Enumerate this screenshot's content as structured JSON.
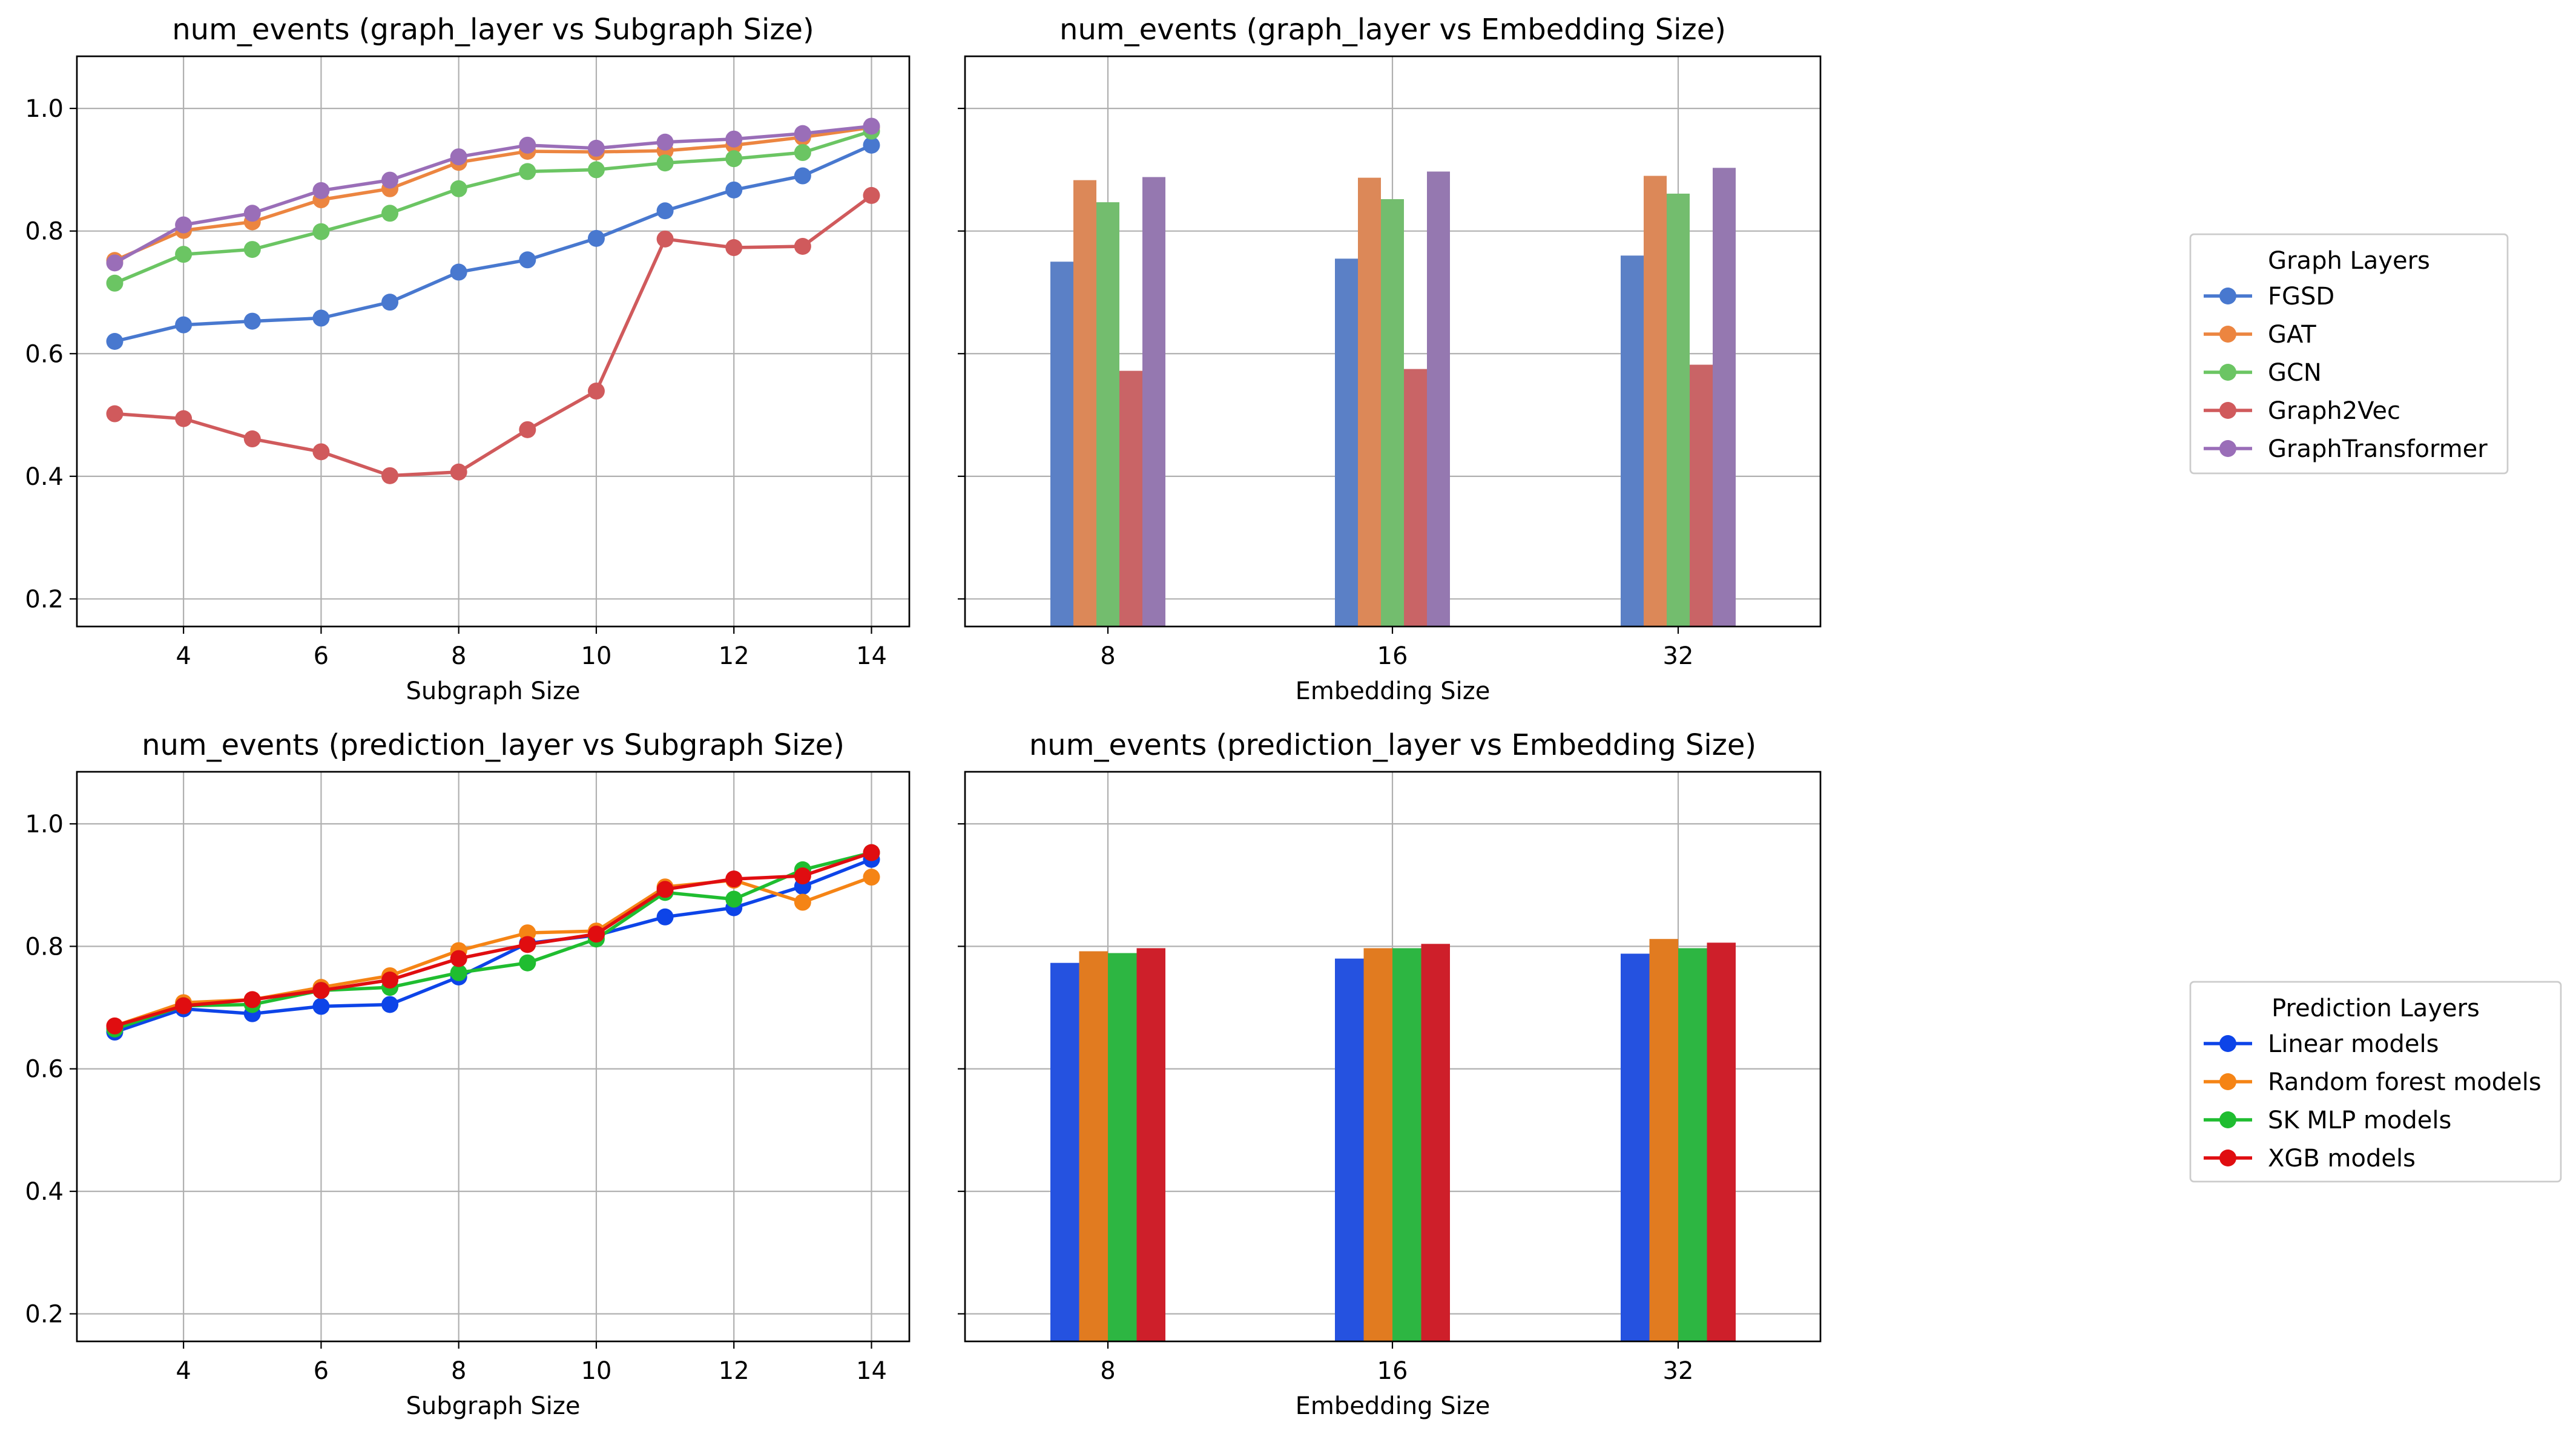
{
  "chart_data": [
    {
      "type": "line",
      "title": "num_events (graph_layer vs Subgraph Size)",
      "xlabel": "Subgraph Size",
      "ylabel": "",
      "x": [
        3,
        4,
        5,
        6,
        7,
        8,
        9,
        10,
        11,
        12,
        13,
        14
      ],
      "xticks": [
        "4",
        "6",
        "8",
        "10",
        "12",
        "14"
      ],
      "xlim": [
        2.45,
        14.55
      ],
      "ylim": [
        0.155,
        1.085
      ],
      "yticks": [
        "0.2",
        "0.4",
        "0.6",
        "0.8",
        "1.0"
      ],
      "grid": true,
      "series": [
        {
          "name": "FGSD",
          "color": "#4878cf",
          "values": [
            0.62,
            0.647,
            0.653,
            0.658,
            0.684,
            0.733,
            0.753,
            0.788,
            0.833,
            0.867,
            0.89,
            0.94
          ]
        },
        {
          "name": "GAT",
          "color": "#ec8540",
          "values": [
            0.752,
            0.801,
            0.815,
            0.851,
            0.869,
            0.912,
            0.93,
            0.929,
            0.931,
            0.94,
            0.953,
            0.969
          ]
        },
        {
          "name": "GCN",
          "color": "#6bc563",
          "values": [
            0.715,
            0.762,
            0.77,
            0.799,
            0.829,
            0.869,
            0.897,
            0.9,
            0.911,
            0.918,
            0.928,
            0.963
          ]
        },
        {
          "name": "Graph2Vec",
          "color": "#d05a5c",
          "values": [
            0.502,
            0.494,
            0.461,
            0.44,
            0.401,
            0.407,
            0.476,
            0.539,
            0.787,
            0.773,
            0.775,
            0.858
          ]
        },
        {
          "name": "GraphTransformer",
          "color": "#9a6eb8",
          "values": [
            0.748,
            0.81,
            0.829,
            0.866,
            0.883,
            0.921,
            0.94,
            0.935,
            0.945,
            0.95,
            0.959,
            0.971
          ]
        }
      ]
    },
    {
      "type": "bar",
      "title": "num_events (graph_layer vs Embedding Size)",
      "xlabel": "Embedding Size",
      "ylabel": "",
      "categories": [
        "8",
        "16",
        "32"
      ],
      "ylim": [
        0.155,
        1.085
      ],
      "grid": true,
      "series": [
        {
          "name": "FGSD",
          "color": "#5b80c6",
          "values": [
            0.75,
            0.755,
            0.76
          ]
        },
        {
          "name": "GAT",
          "color": "#dc8858",
          "values": [
            0.883,
            0.887,
            0.89
          ]
        },
        {
          "name": "GCN",
          "color": "#73bd6e",
          "values": [
            0.847,
            0.852,
            0.861
          ]
        },
        {
          "name": "Graph2Vec",
          "color": "#c96466",
          "values": [
            0.572,
            0.575,
            0.582
          ]
        },
        {
          "name": "GraphTransformer",
          "color": "#9578b0",
          "values": [
            0.888,
            0.897,
            0.903
          ]
        }
      ]
    },
    {
      "type": "line",
      "title": "num_events (prediction_layer vs Subgraph Size)",
      "xlabel": "Subgraph Size",
      "ylabel": "",
      "x": [
        3,
        4,
        5,
        6,
        7,
        8,
        9,
        10,
        11,
        12,
        13,
        14
      ],
      "xticks": [
        "4",
        "6",
        "8",
        "10",
        "12",
        "14"
      ],
      "xlim": [
        2.45,
        14.55
      ],
      "ylim": [
        0.155,
        1.085
      ],
      "yticks": [
        "0.2",
        "0.4",
        "0.6",
        "0.8",
        "1.0"
      ],
      "grid": true,
      "series": [
        {
          "name": "Linear models",
          "color": "#0d44e8",
          "values": [
            0.66,
            0.698,
            0.69,
            0.702,
            0.705,
            0.75,
            0.805,
            0.818,
            0.848,
            0.863,
            0.898,
            0.942
          ]
        },
        {
          "name": "Random forest models",
          "color": "#f58415",
          "values": [
            0.67,
            0.708,
            0.713,
            0.733,
            0.752,
            0.793,
            0.822,
            0.825,
            0.897,
            0.908,
            0.872,
            0.913
          ]
        },
        {
          "name": "SK MLP models",
          "color": "#1fbd30",
          "values": [
            0.665,
            0.703,
            0.705,
            0.728,
            0.733,
            0.757,
            0.773,
            0.812,
            0.888,
            0.877,
            0.925,
            0.953
          ]
        },
        {
          "name": "XGB models",
          "color": "#e00d10",
          "values": [
            0.67,
            0.703,
            0.713,
            0.728,
            0.745,
            0.78,
            0.803,
            0.82,
            0.893,
            0.91,
            0.915,
            0.953
          ]
        }
      ]
    },
    {
      "type": "bar",
      "title": "num_events (prediction_layer vs Embedding Size)",
      "xlabel": "Embedding Size",
      "ylabel": "",
      "categories": [
        "8",
        "16",
        "32"
      ],
      "ylim": [
        0.155,
        1.085
      ],
      "grid": true,
      "series": [
        {
          "name": "Linear models",
          "color": "#2552e0",
          "values": [
            0.773,
            0.78,
            0.788
          ]
        },
        {
          "name": "Random forest models",
          "color": "#e17b20",
          "values": [
            0.792,
            0.797,
            0.812
          ]
        },
        {
          "name": "SK MLP models",
          "color": "#2db642",
          "values": [
            0.789,
            0.797,
            0.797
          ]
        },
        {
          "name": "XGB models",
          "color": "#ce1f2a",
          "values": [
            0.797,
            0.804,
            0.806
          ]
        }
      ]
    }
  ],
  "legends": [
    {
      "title": "Graph Layers",
      "items": [
        "FGSD",
        "GAT",
        "GCN",
        "Graph2Vec",
        "GraphTransformer"
      ],
      "colors": [
        "#4878cf",
        "#ec8540",
        "#6bc563",
        "#d05a5c",
        "#9a6eb8"
      ]
    },
    {
      "title": "Prediction Layers",
      "items": [
        "Linear models",
        "Random forest models",
        "SK MLP models",
        "XGB models"
      ],
      "colors": [
        "#0d44e8",
        "#f58415",
        "#1fbd30",
        "#e00d10"
      ]
    }
  ]
}
